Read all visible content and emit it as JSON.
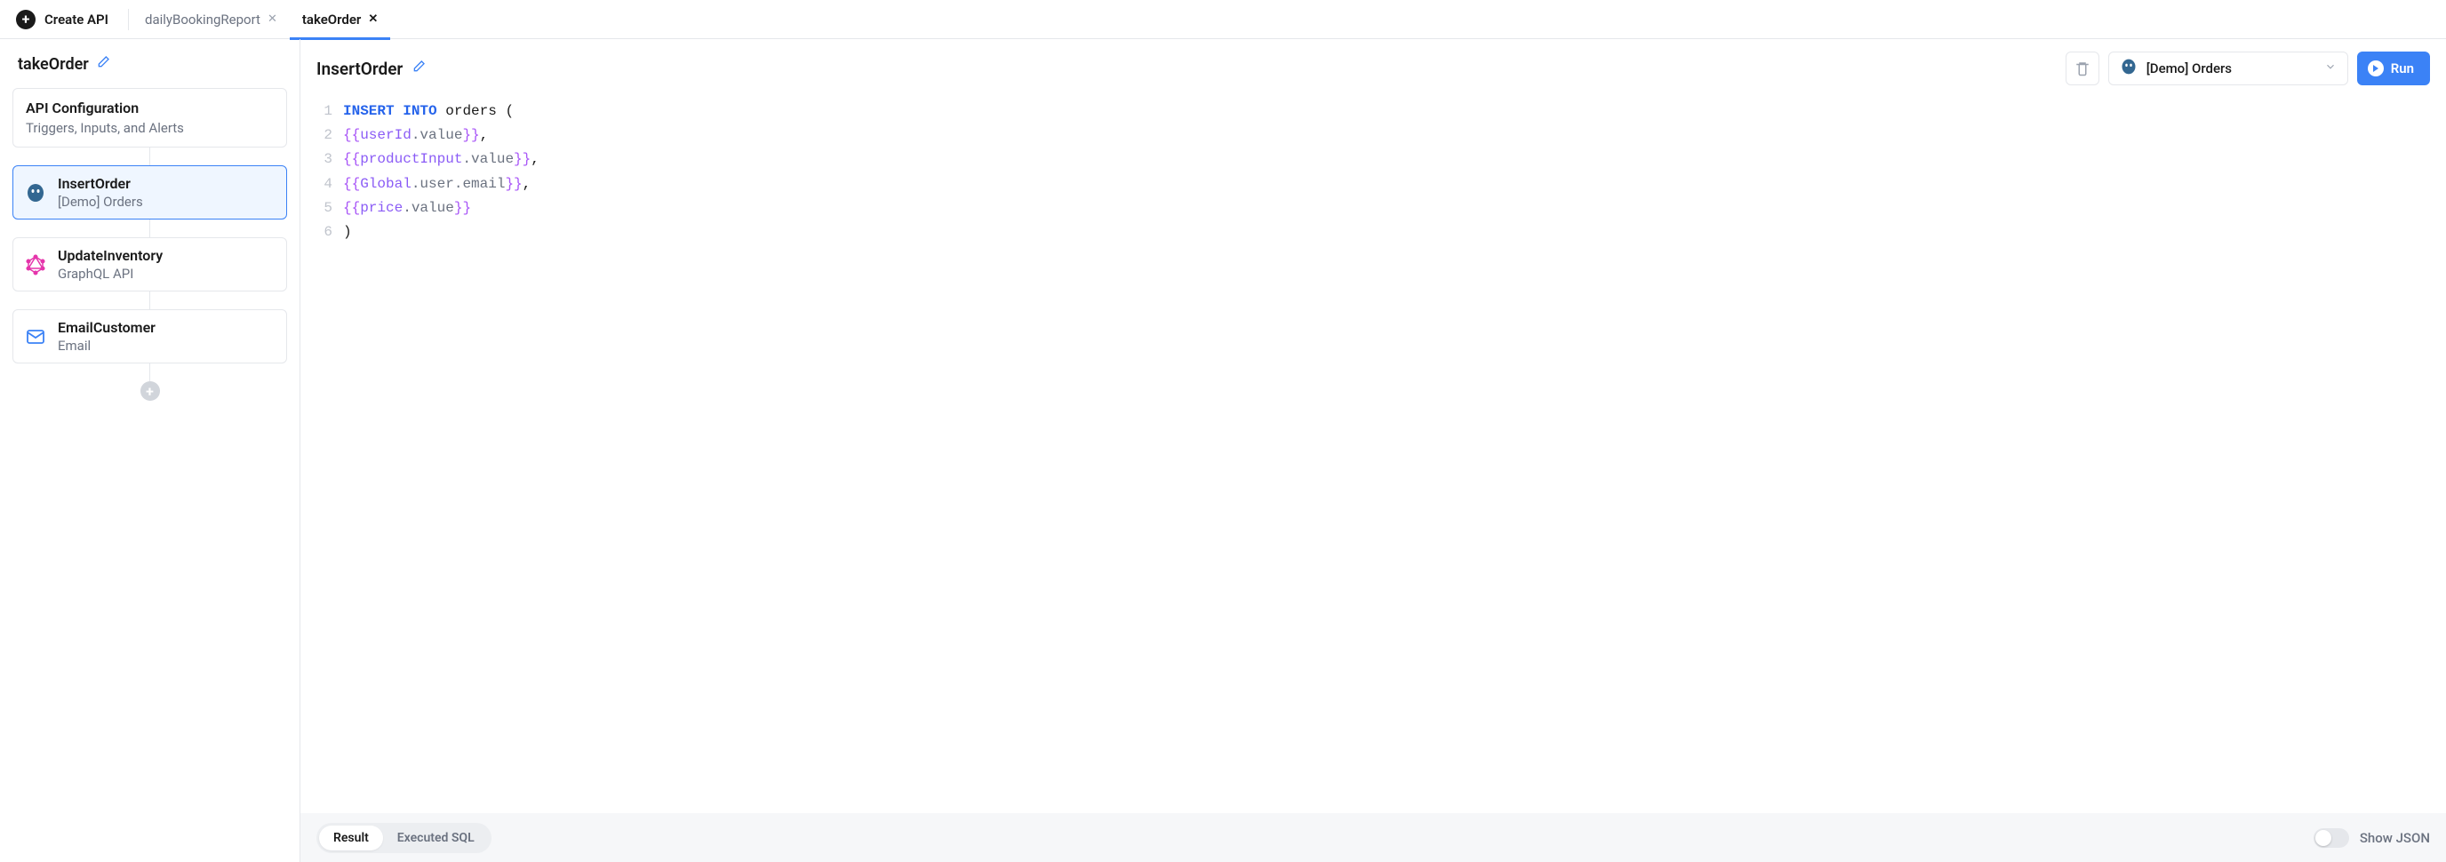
{
  "topbar": {
    "create_label": "Create API",
    "tabs": [
      {
        "label": "dailyBookingReport",
        "active": false
      },
      {
        "label": "takeOrder",
        "active": true
      }
    ]
  },
  "sidebar": {
    "workflow_name": "takeOrder",
    "config_card": {
      "title": "API Configuration",
      "subtitle": "Triggers, Inputs, and Alerts"
    },
    "steps": [
      {
        "icon": "postgres",
        "title": "InsertOrder",
        "subtitle": "[Demo] Orders",
        "selected": true
      },
      {
        "icon": "graphql",
        "title": "UpdateInventory",
        "subtitle": "GraphQL API",
        "selected": false
      },
      {
        "icon": "email",
        "title": "EmailCustomer",
        "subtitle": "Email",
        "selected": false
      }
    ]
  },
  "content": {
    "step_title": "InsertOrder",
    "datasource_label": "[Demo] Orders",
    "run_label": "Run"
  },
  "editor": {
    "font_family": "monospace",
    "colors": {
      "keyword": "#2563eb",
      "template_brace": "#a855f7",
      "template_ident": "#8b5cf6",
      "property": "#6b7280",
      "gutter": "#c0c4cc",
      "text": "#1a1a1a"
    },
    "lines": [
      {
        "n": 1,
        "tokens": [
          {
            "t": "INSERT",
            "c": "kw"
          },
          {
            "t": " ",
            "c": ""
          },
          {
            "t": "INTO",
            "c": "kw"
          },
          {
            "t": " ",
            "c": ""
          },
          {
            "t": "orders",
            "c": "ident"
          },
          {
            "t": " (",
            "c": "punct"
          }
        ]
      },
      {
        "n": 2,
        "tokens": [
          {
            "t": "{{",
            "c": "tmpl-brace"
          },
          {
            "t": "userId",
            "c": "tmpl-id"
          },
          {
            "t": ".",
            "c": "prop"
          },
          {
            "t": "value",
            "c": "prop"
          },
          {
            "t": "}}",
            "c": "tmpl-brace"
          },
          {
            "t": ",",
            "c": "punct"
          }
        ]
      },
      {
        "n": 3,
        "tokens": [
          {
            "t": "{{",
            "c": "tmpl-brace"
          },
          {
            "t": "productInput",
            "c": "tmpl-id"
          },
          {
            "t": ".",
            "c": "prop"
          },
          {
            "t": "value",
            "c": "prop"
          },
          {
            "t": "}}",
            "c": "tmpl-brace"
          },
          {
            "t": ",",
            "c": "punct"
          }
        ]
      },
      {
        "n": 4,
        "tokens": [
          {
            "t": "{{",
            "c": "tmpl-brace"
          },
          {
            "t": "Global",
            "c": "tmpl-id"
          },
          {
            "t": ".",
            "c": "prop"
          },
          {
            "t": "user",
            "c": "prop"
          },
          {
            "t": ".",
            "c": "prop"
          },
          {
            "t": "email",
            "c": "prop"
          },
          {
            "t": "}}",
            "c": "tmpl-brace"
          },
          {
            "t": ",",
            "c": "punct"
          }
        ]
      },
      {
        "n": 5,
        "tokens": [
          {
            "t": "{{",
            "c": "tmpl-brace"
          },
          {
            "t": "price",
            "c": "tmpl-id"
          },
          {
            "t": ".",
            "c": "prop"
          },
          {
            "t": "value",
            "c": "prop"
          },
          {
            "t": "}}",
            "c": "tmpl-brace"
          }
        ]
      },
      {
        "n": 6,
        "tokens": [
          {
            "t": ")",
            "c": "punct"
          }
        ]
      }
    ]
  },
  "bottom": {
    "tab_result": "Result",
    "tab_executed": "Executed SQL",
    "show_json_label": "Show JSON",
    "show_json_on": false
  },
  "icons": {
    "postgres_color": "#336791",
    "graphql_color": "#e535ab",
    "email_color": "#3b82f6"
  }
}
